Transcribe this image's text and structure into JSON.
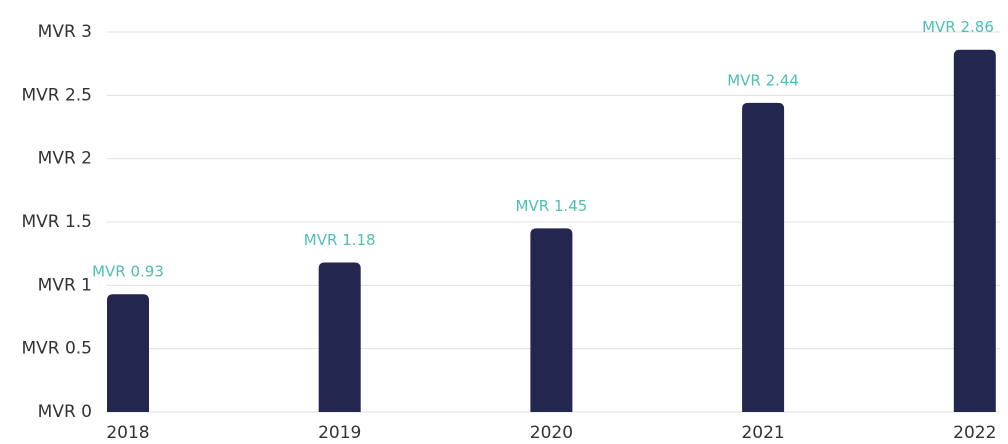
{
  "chart_data": {
    "type": "bar",
    "categories": [
      "2018",
      "2019",
      "2020",
      "2021",
      "2022"
    ],
    "values": [
      0.93,
      1.18,
      1.45,
      2.44,
      2.86
    ],
    "value_labels": [
      "MVR 0.93",
      "MVR 1.18",
      "MVR 1.45",
      "MVR 2.44",
      "MVR 2.86"
    ],
    "color": "#23264f",
    "label_color": "#4fbfb5",
    "ylim": [
      0,
      3
    ],
    "yticks": [
      {
        "value": 0,
        "label": "MVR 0"
      },
      {
        "value": 0.5,
        "label": "MVR 0.5"
      },
      {
        "value": 1,
        "label": "MVR 1"
      },
      {
        "value": 1.5,
        "label": "MVR 1.5"
      },
      {
        "value": 2,
        "label": "MVR 2"
      },
      {
        "value": 2.5,
        "label": "MVR 2.5"
      },
      {
        "value": 3,
        "label": "MVR 3"
      }
    ],
    "grid": true
  }
}
